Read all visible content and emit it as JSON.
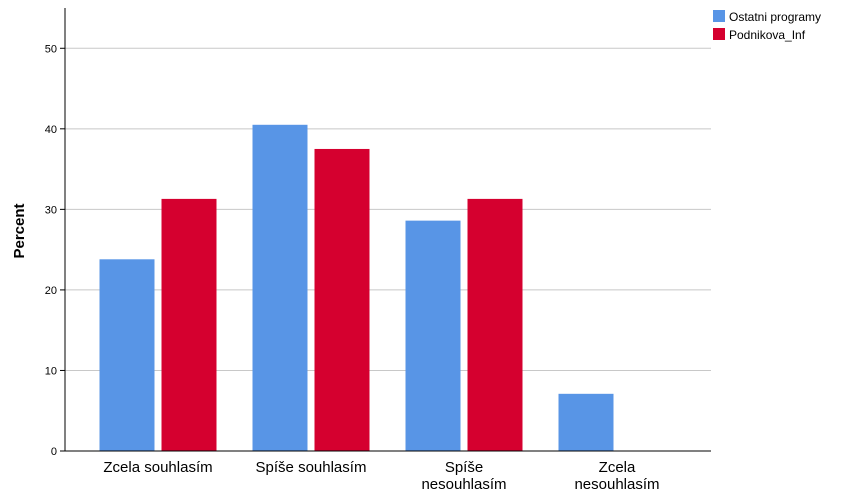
{
  "chart_data": {
    "type": "bar",
    "categories": [
      [
        "Zcela souhlasím"
      ],
      [
        "Spíše souhlasím"
      ],
      [
        "Spíše",
        "nesouhlasím"
      ],
      [
        "Zcela",
        "nesouhlasím"
      ]
    ],
    "series": [
      {
        "name": "Ostatni programy",
        "color": "#5895e6",
        "values": [
          23.8,
          40.5,
          28.6,
          7.1
        ]
      },
      {
        "name": "Podnikova_Inf",
        "color": "#d5002f",
        "values": [
          31.3,
          37.5,
          31.3,
          0
        ]
      }
    ],
    "ylabel": "Percent",
    "ylim": [
      0,
      55
    ],
    "yticks": [
      0,
      10,
      20,
      30,
      40,
      50
    ],
    "grid": true,
    "legend": "top-right"
  }
}
